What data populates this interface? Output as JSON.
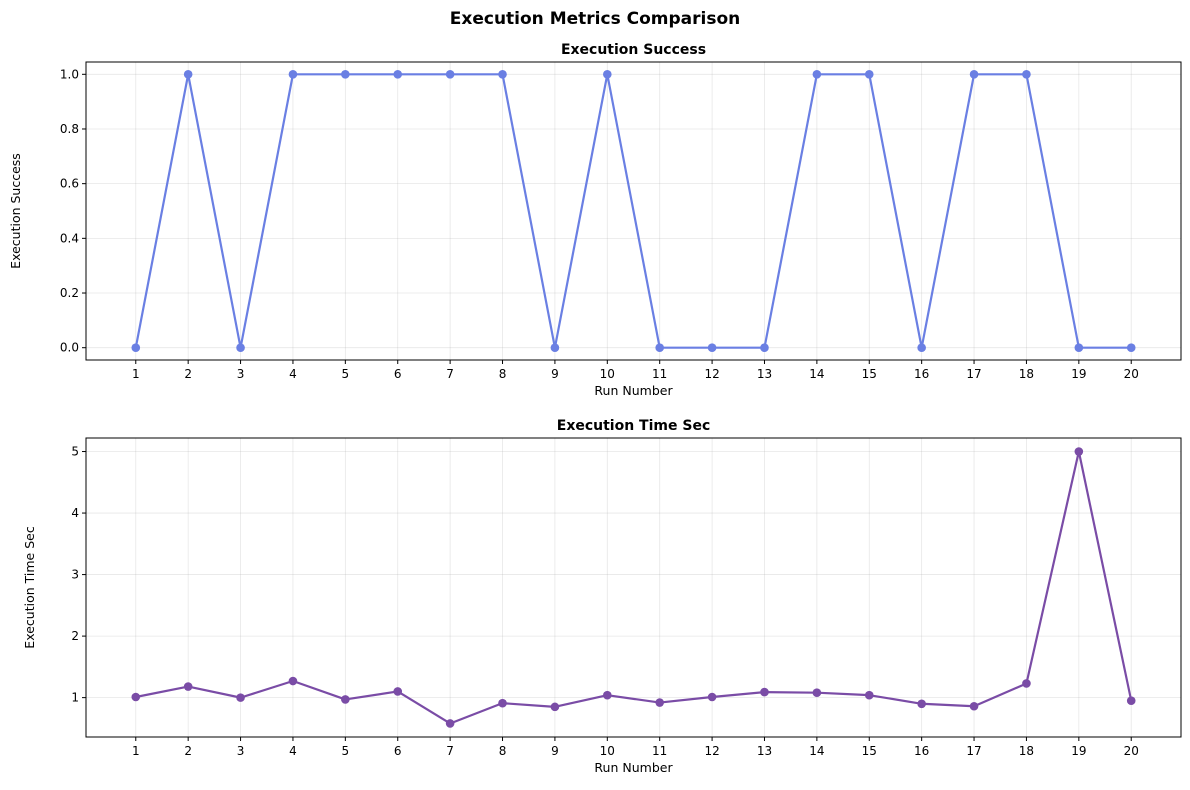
{
  "figure_title": "Execution Metrics Comparison",
  "chart_data": [
    {
      "type": "line",
      "title": "Execution Success",
      "xlabel": "Run Number",
      "ylabel": "Execution Success",
      "x": [
        1,
        2,
        3,
        4,
        5,
        6,
        7,
        8,
        9,
        10,
        11,
        12,
        13,
        14,
        15,
        16,
        17,
        18,
        19,
        20
      ],
      "x_ticks": [
        "1",
        "2",
        "3",
        "4",
        "5",
        "6",
        "7",
        "8",
        "9",
        "10",
        "11",
        "12",
        "13",
        "14",
        "15",
        "16",
        "17",
        "18",
        "19",
        "20"
      ],
      "y_ticks": [
        "0.0",
        "0.2",
        "0.4",
        "0.6",
        "0.8",
        "1.0"
      ],
      "y_tick_values": [
        0,
        0.2,
        0.4,
        0.6,
        0.8,
        1.0
      ],
      "ylim": [
        -0.045,
        1.045
      ],
      "xlim": [
        0.05,
        20.95
      ],
      "grid": true,
      "series": [
        {
          "values": [
            0,
            1,
            0,
            1,
            1,
            1,
            1,
            1,
            0,
            1,
            0,
            0,
            0,
            1,
            1,
            0,
            1,
            1,
            0,
            0
          ],
          "color": "#6a7fe3"
        }
      ]
    },
    {
      "type": "line",
      "title": "Execution Time Sec",
      "xlabel": "Run Number",
      "ylabel": "Execution Time Sec",
      "x": [
        1,
        2,
        3,
        4,
        5,
        6,
        7,
        8,
        9,
        10,
        11,
        12,
        13,
        14,
        15,
        16,
        17,
        18,
        19,
        20
      ],
      "x_ticks": [
        "1",
        "2",
        "3",
        "4",
        "5",
        "6",
        "7",
        "8",
        "9",
        "10",
        "11",
        "12",
        "13",
        "14",
        "15",
        "16",
        "17",
        "18",
        "19",
        "20"
      ],
      "y_ticks": [
        "1",
        "2",
        "3",
        "4",
        "5"
      ],
      "y_tick_values": [
        1,
        2,
        3,
        4,
        5
      ],
      "ylim": [
        0.36,
        5.22
      ],
      "xlim": [
        0.05,
        20.95
      ],
      "grid": true,
      "series": [
        {
          "values": [
            1.01,
            1.18,
            1.0,
            1.27,
            0.97,
            1.1,
            0.58,
            0.91,
            0.85,
            1.04,
            0.92,
            1.01,
            1.09,
            1.08,
            1.04,
            0.9,
            0.86,
            1.23,
            5.0,
            0.95
          ],
          "color": "#7a4ca6"
        }
      ]
    }
  ]
}
